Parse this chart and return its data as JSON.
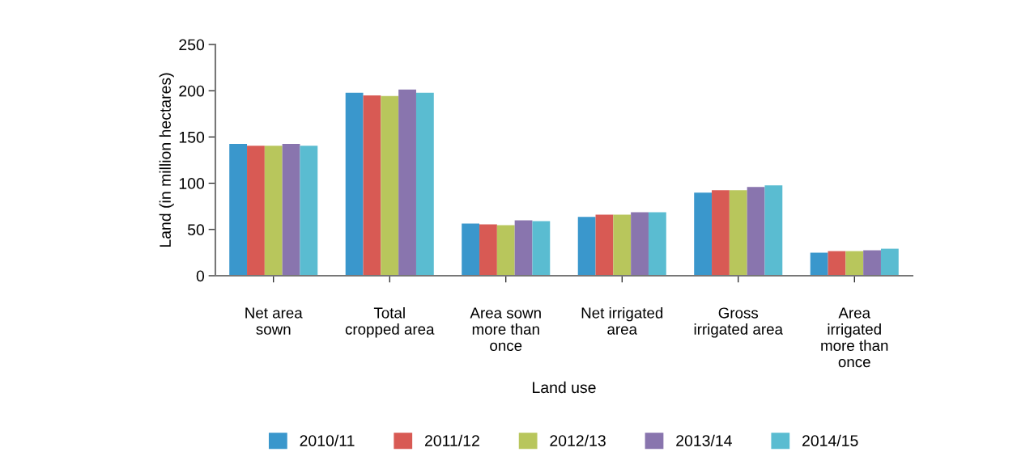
{
  "chart_data": {
    "type": "bar",
    "xlabel": "Land use",
    "ylabel": "Land (in million hectares)",
    "categories": [
      "Net area\nsown",
      "Total\ncropped area",
      "Area sown\nmore than\nonce",
      "Net irrigated\narea",
      "Gross\nirrigated area",
      "Area\nirrigated\nmore than\nonce"
    ],
    "series": [
      {
        "name": "2010/11",
        "color": "#3a97cc",
        "values": [
          142.4,
          197.7,
          56.4,
          63.5,
          89.8,
          24.9
        ]
      },
      {
        "name": "2011/12",
        "color": "#d85a54",
        "values": [
          140.6,
          195,
          55.6,
          66.1,
          92.4,
          26.6
        ]
      },
      {
        "name": "2012/13",
        "color": "#b8c65c",
        "values": [
          140.6,
          194.2,
          54.7,
          66.1,
          92.4,
          26.6
        ]
      },
      {
        "name": "2013/14",
        "color": "#8975ae",
        "values": [
          142.4,
          201.2,
          59.9,
          68.7,
          95.9,
          27.5
        ]
      },
      {
        "name": "2014/15",
        "color": "#5abcd1",
        "values": [
          140.6,
          197.7,
          59.1,
          68.7,
          97.7,
          29.2
        ]
      }
    ],
    "ylim": [
      0,
      250
    ],
    "yticks": [
      0,
      50,
      100,
      150,
      200,
      250
    ],
    "grid": false,
    "legend": "bottom"
  }
}
